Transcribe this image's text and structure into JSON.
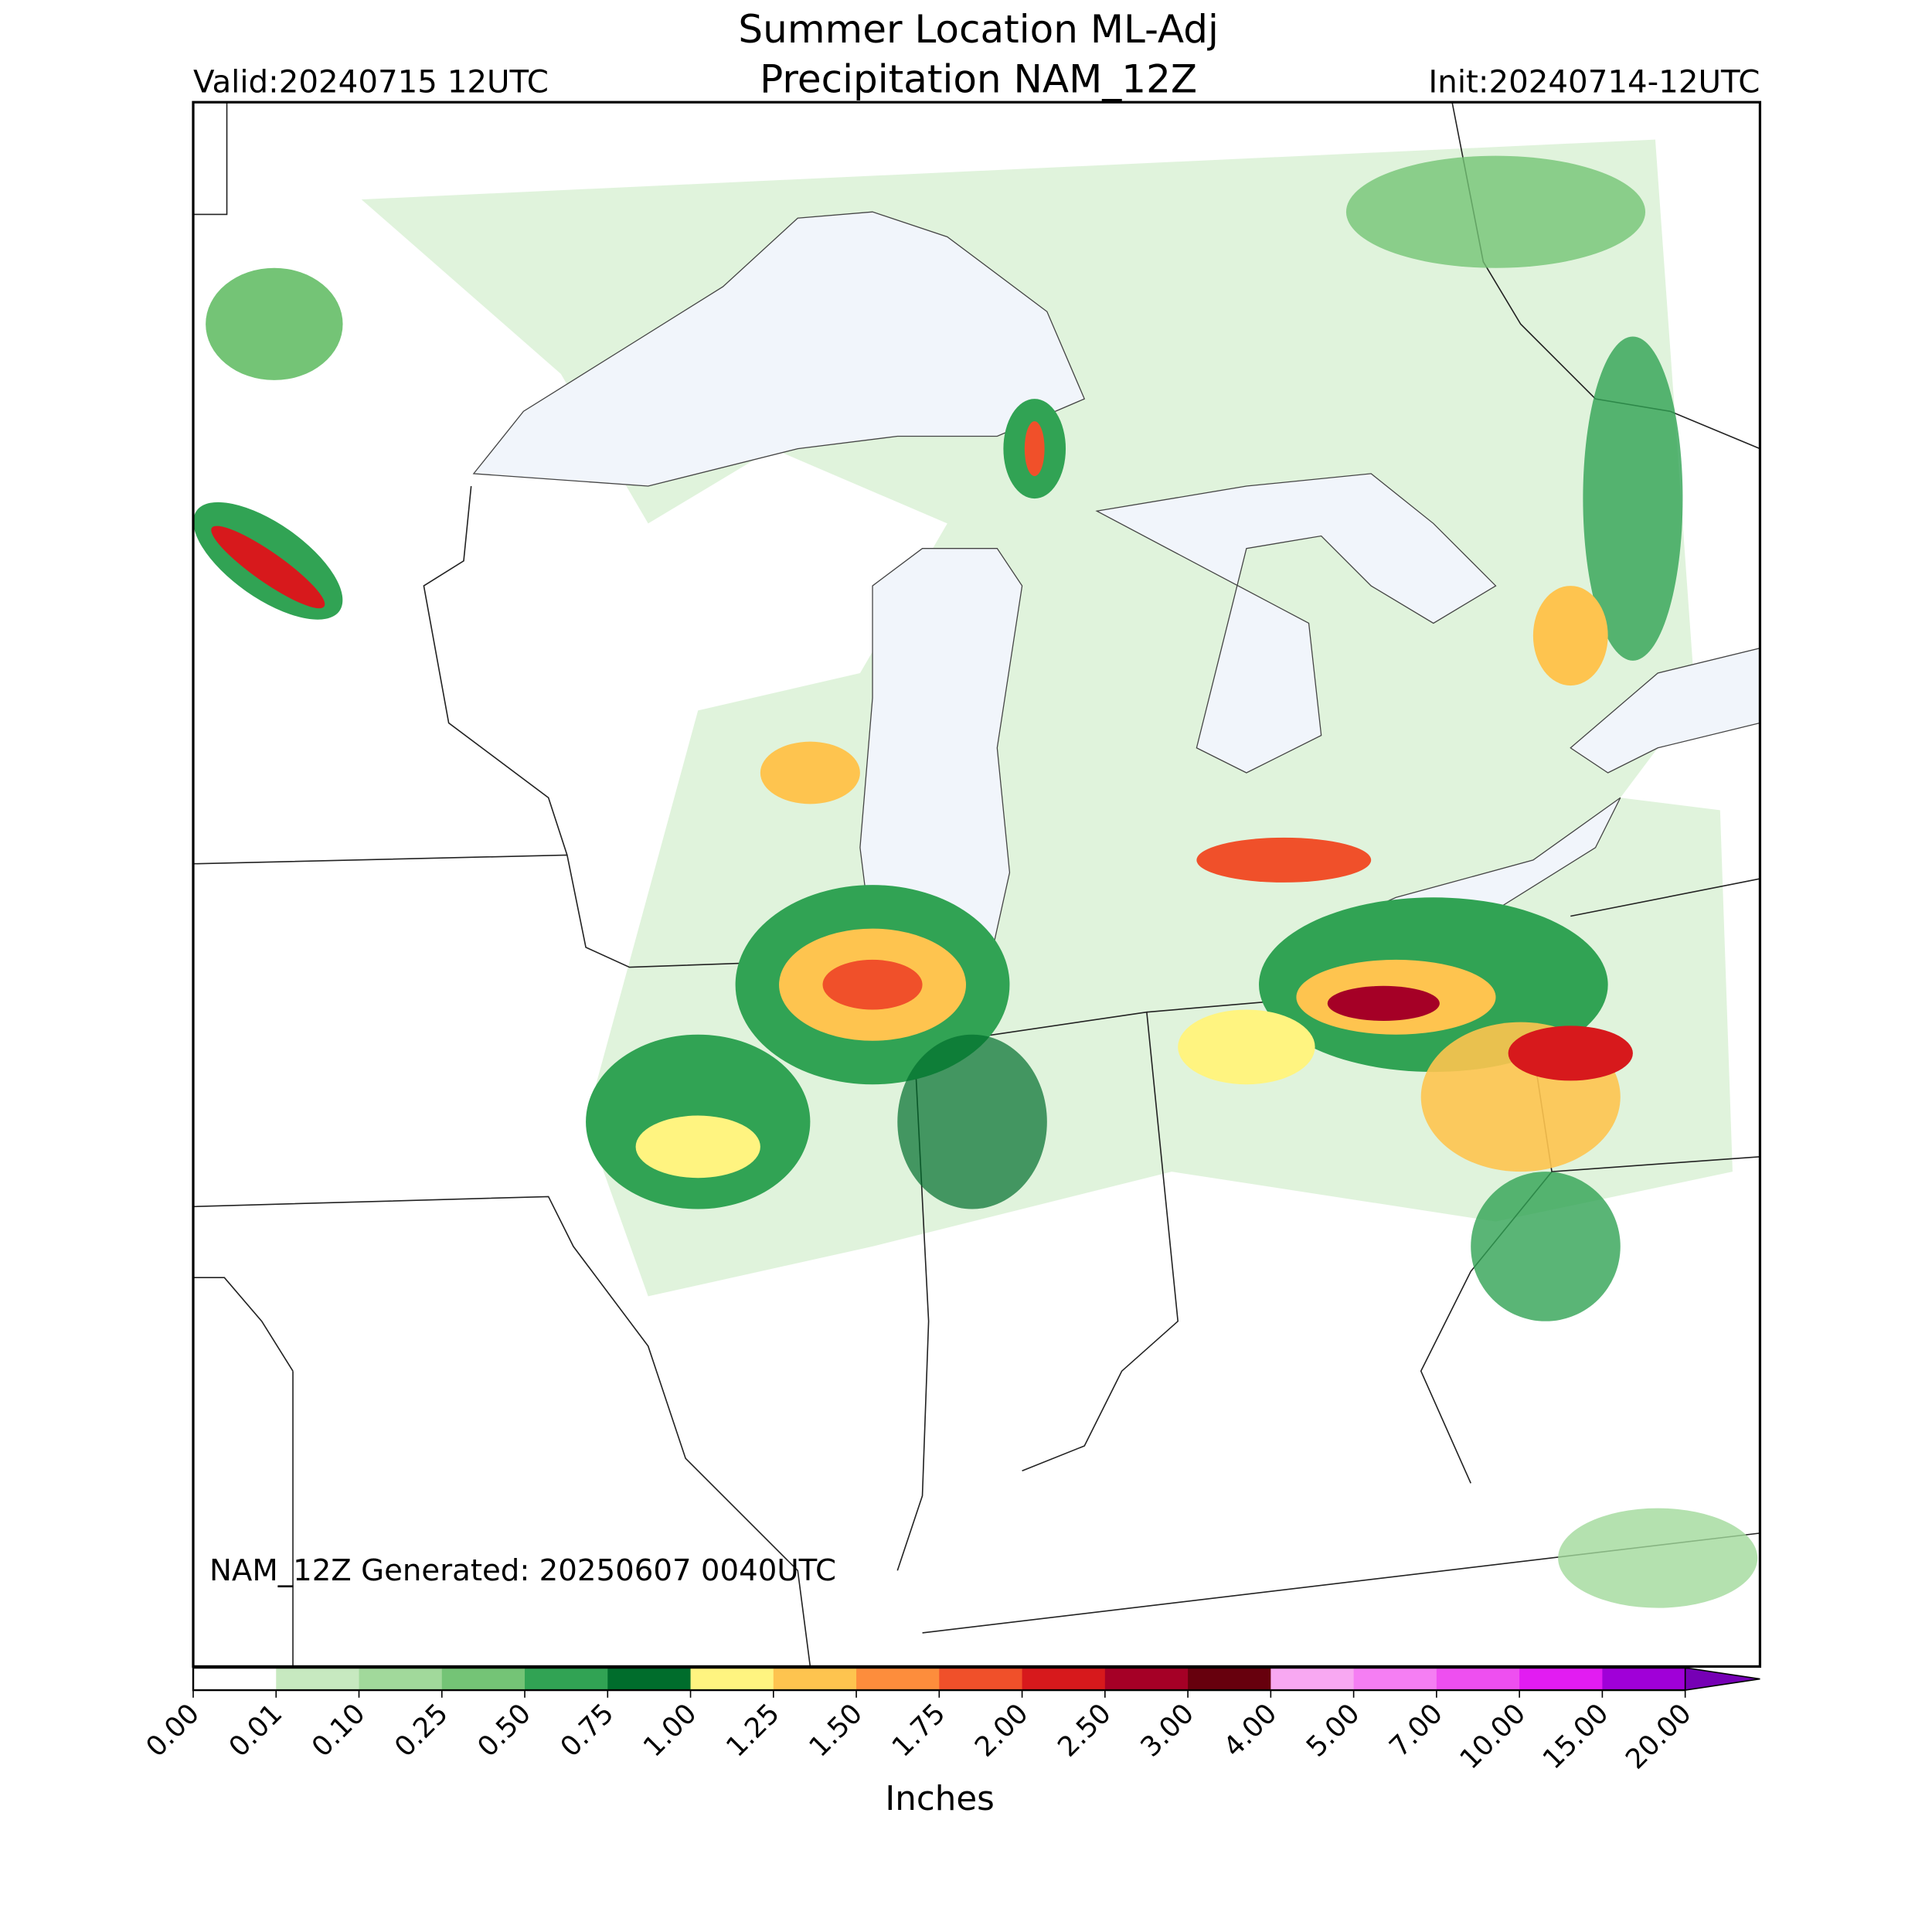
{
  "header": {
    "title": [
      "Summer Location ML-Adj",
      "Precipitation NAM_12Z"
    ],
    "valid": "Valid:20240715 12UTC",
    "init": "Init:20240714-12UTC"
  },
  "footer_note": "NAM_12Z Generated: 20250607 0040UTC",
  "colorbar": {
    "label": "Inches",
    "extend": "max",
    "ticks": [
      {
        "value": 0,
        "label": "0.00"
      },
      {
        "value": 0.01,
        "label": "0.01"
      },
      {
        "value": 0.1,
        "label": "0.10"
      },
      {
        "value": 0.25,
        "label": "0.25"
      },
      {
        "value": 0.5,
        "label": "0.50"
      },
      {
        "value": 0.75,
        "label": "0.75"
      },
      {
        "value": 1,
        "label": "1.00"
      },
      {
        "value": 1.25,
        "label": "1.25"
      },
      {
        "value": 1.5,
        "label": "1.50"
      },
      {
        "value": 1.75,
        "label": "1.75"
      },
      {
        "value": 2,
        "label": "2.00"
      },
      {
        "value": 2.5,
        "label": "2.50"
      },
      {
        "value": 3,
        "label": "3.00"
      },
      {
        "value": 4,
        "label": "4.00"
      },
      {
        "value": 5,
        "label": "5.00"
      },
      {
        "value": 7,
        "label": "7.00"
      },
      {
        "value": 10,
        "label": "10.00"
      },
      {
        "value": 15,
        "label": "15.00"
      },
      {
        "value": 20,
        "label": "20.00"
      }
    ],
    "colors": [
      "#ffffff",
      "#c7e9c0",
      "#a1d99b",
      "#74c476",
      "#31a354",
      "#006d2c",
      "#fff480",
      "#fec44f",
      "#fd8d3c",
      "#f0502a",
      "#d7191c",
      "#a50026",
      "#67000d",
      "#f8a8f2",
      "#f57ef3",
      "#ee4ff0",
      "#e21cf2",
      "#a000d8",
      "#7600b5"
    ]
  }
}
